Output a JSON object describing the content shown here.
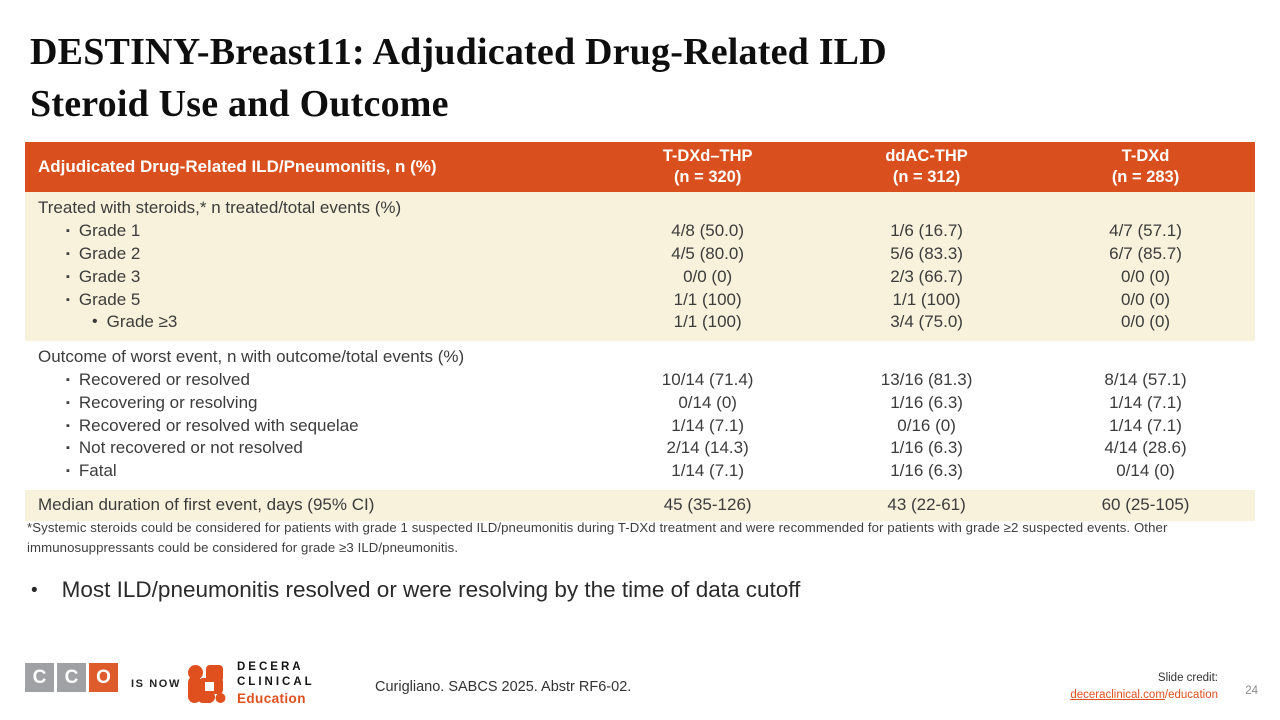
{
  "slide": {
    "title_line1": "DESTINY-Breast11: Adjudicated Drug-Related ILD",
    "title_line2": "Steroid Use and Outcome",
    "footnote": "*Systemic steroids could be considered for patients with grade 1 suspected ILD/pneumonitis during T-DXd treatment and were recommended for patients with grade ≥2 suspected events. Other immunosuppressants could be considered for grade ≥3 ILD/pneumonitis.",
    "takeaway": "Most ILD/pneumonitis resolved or were resolving by the time of data cutoff",
    "page_number": "24"
  },
  "table": {
    "header": {
      "label": "Adjudicated Drug-Related ILD/Pneumonitis, n (%)",
      "columns": [
        {
          "line1": "T-DXd–THP",
          "line2": "(n = 320)"
        },
        {
          "line1": "ddAC-THP",
          "line2": "(n = 312)"
        },
        {
          "line1": "T-DXd",
          "line2": "(n = 283)"
        }
      ]
    },
    "sections": [
      {
        "bg": "beige",
        "rows": [
          {
            "label": "Treated with steroids,* n treated/total events (%)",
            "indent": 0,
            "bullet": "",
            "values": [
              "",
              "",
              ""
            ]
          },
          {
            "label": "Grade 1",
            "indent": 1,
            "bullet": "▪",
            "values": [
              "4/8 (50.0)",
              "1/6 (16.7)",
              "4/7 (57.1)"
            ]
          },
          {
            "label": "Grade 2",
            "indent": 1,
            "bullet": "▪",
            "values": [
              "4/5 (80.0)",
              "5/6 (83.3)",
              "6/7 (85.7)"
            ]
          },
          {
            "label": "Grade 3",
            "indent": 1,
            "bullet": "▪",
            "values": [
              "0/0 (0)",
              "2/3 (66.7)",
              "0/0 (0)"
            ]
          },
          {
            "label": "Grade 5",
            "indent": 1,
            "bullet": "▪",
            "values": [
              "1/1 (100)",
              "1/1 (100)",
              "0/0 (0)"
            ]
          },
          {
            "label": "Grade ≥3",
            "indent": 2,
            "bullet": "•",
            "values": [
              "1/1 (100)",
              "3/4 (75.0)",
              "0/0 (0)"
            ]
          }
        ]
      },
      {
        "bg": "white",
        "rows": [
          {
            "label": "Outcome of worst event, n with outcome/total events (%)",
            "indent": 0,
            "bullet": "",
            "values": [
              "",
              "",
              ""
            ]
          },
          {
            "label": "Recovered or resolved",
            "indent": 1,
            "bullet": "▪",
            "values": [
              "10/14 (71.4)",
              "13/16 (81.3)",
              "8/14 (57.1)"
            ]
          },
          {
            "label": "Recovering or resolving",
            "indent": 1,
            "bullet": "▪",
            "values": [
              "0/14 (0)",
              "1/16 (6.3)",
              "1/14 (7.1)"
            ]
          },
          {
            "label": "Recovered or resolved with sequelae",
            "indent": 1,
            "bullet": "▪",
            "values": [
              "1/14 (7.1)",
              "0/16 (0)",
              "1/14 (7.1)"
            ]
          },
          {
            "label": "Not recovered or not resolved",
            "indent": 1,
            "bullet": "▪",
            "values": [
              "2/14 (14.3)",
              "1/16 (6.3)",
              "4/14 (28.6)"
            ]
          },
          {
            "label": "Fatal",
            "indent": 1,
            "bullet": "▪",
            "values": [
              "1/14 (7.1)",
              "1/16 (6.3)",
              "0/14 (0)"
            ]
          }
        ]
      },
      {
        "bg": "beige",
        "rows": [
          {
            "label": "Median duration of first event, days (95% CI)",
            "indent": 0,
            "bullet": "",
            "values": [
              "45 (35-126)",
              "43 (22-61)",
              "60 (25-105)"
            ]
          }
        ]
      }
    ]
  },
  "footer": {
    "cco_letters": [
      "C",
      "C",
      "O"
    ],
    "is_now": "IS NOW",
    "decera_line1": "DECERA",
    "decera_line2": "CLINICAL",
    "decera_line3": "Education",
    "citation": "Curigliano. SABCS 2025. Abstr RF6-02.",
    "credit_label": "Slide credit:",
    "credit_link_domain": "deceraclinical.com",
    "credit_link_path": "/education"
  },
  "colors": {
    "accent_orange": "#d94f1e",
    "row_beige": "#f8f1db",
    "logo_orange": "#e0501e",
    "logo_gray": "#9fa1a4"
  }
}
